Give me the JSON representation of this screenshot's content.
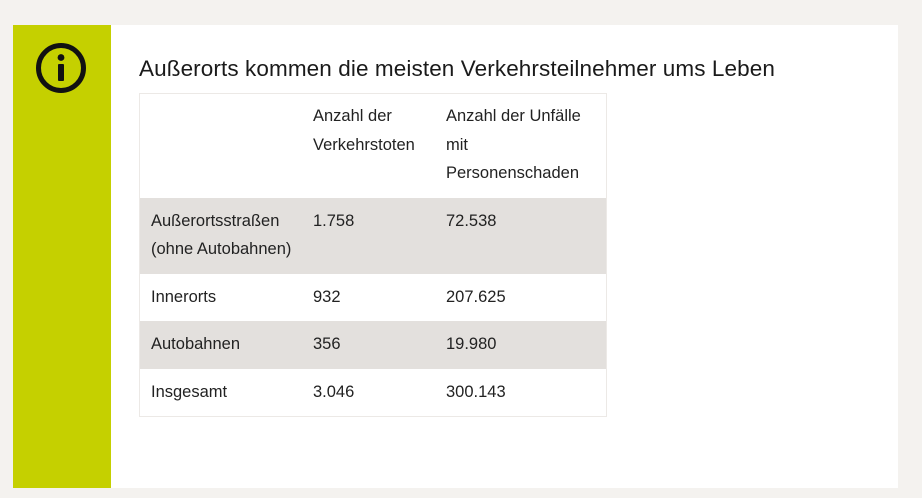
{
  "info_box": {
    "icon": "info-icon",
    "accent_color": "#c5d000",
    "title": "Außerorts kommen die meisten Verkehrsteilnehmer ums Leben"
  },
  "table": {
    "headers": [
      "",
      "Anzahl der Verkehrstoten",
      "Anzahl der Unfälle mit Personenschaden"
    ],
    "rows": [
      {
        "category": "Außerortsstraßen (ohne Autobahnen)",
        "fatalities": "1.758",
        "accidents": "72.538"
      },
      {
        "category": "Innerorts",
        "fatalities": "932",
        "accidents": "207.625"
      },
      {
        "category": "Autobahnen",
        "fatalities": "356",
        "accidents": "19.980"
      },
      {
        "category": "Insgesamt",
        "fatalities": "3.046",
        "accidents": "300.143"
      }
    ]
  }
}
